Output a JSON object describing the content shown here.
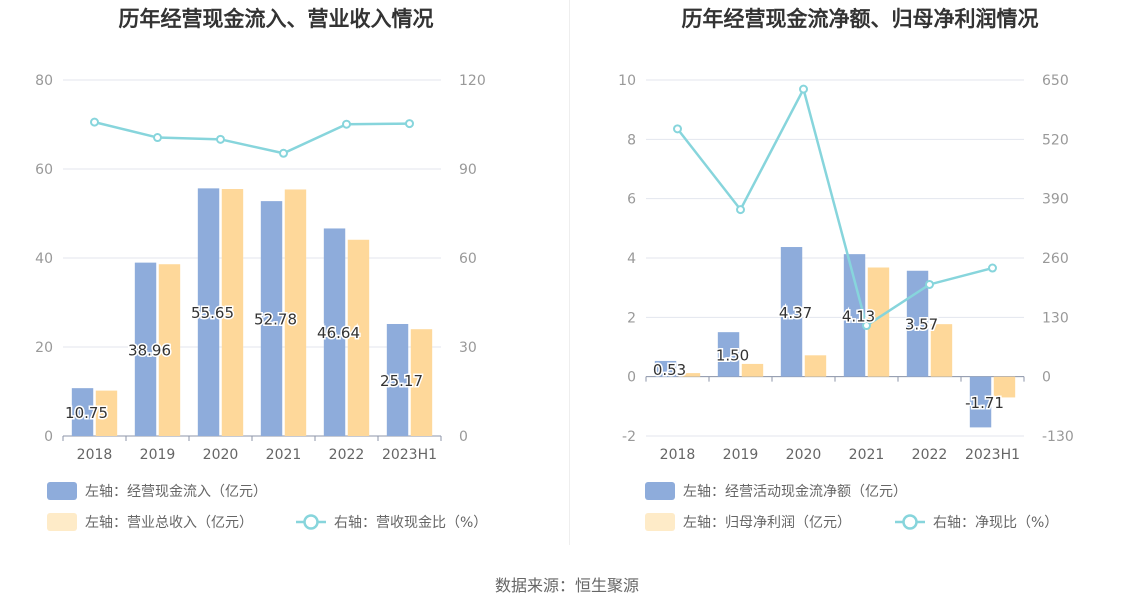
{
  "colors": {
    "bar1": "#8eacdb",
    "bar2": "#fed89a",
    "legend_bar2": "#feebc8",
    "line": "#87d5dc",
    "grid": "#e3e6ee"
  },
  "source": "数据来源：恒生聚源",
  "chart_data": [
    {
      "type": "bar+line",
      "title": "历年经营现金流入、营业收入情况",
      "categories": [
        "2018",
        "2019",
        "2020",
        "2021",
        "2022",
        "2023H1"
      ],
      "left_axis": {
        "min": 0,
        "max": 80,
        "ticks": [
          0,
          20,
          40,
          60,
          80
        ]
      },
      "right_axis": {
        "min": 0,
        "max": 120,
        "ticks": [
          0,
          30,
          60,
          90,
          120
        ]
      },
      "series": [
        {
          "name": "左轴：经营现金流入（亿元）",
          "kind": "bar",
          "axis": "left",
          "values": [
            10.75,
            38.96,
            55.65,
            52.78,
            46.64,
            25.17
          ],
          "labels": [
            "10.75",
            "38.96",
            "55.65",
            "52.78",
            "46.64",
            "25.17"
          ]
        },
        {
          "name": "左轴：营业总收入（亿元）",
          "kind": "bar",
          "axis": "left",
          "values": [
            10.2,
            38.6,
            55.5,
            55.4,
            44.1,
            24.0
          ]
        },
        {
          "name": "右轴：营收现金比（%）",
          "kind": "line",
          "axis": "right",
          "values": [
            105.8,
            100.6,
            100.0,
            95.3,
            105.1,
            105.3
          ]
        }
      ],
      "legend_placement": "bottom"
    },
    {
      "type": "bar+line",
      "title": "历年经营现金流净额、归母净利润情况",
      "categories": [
        "2018",
        "2019",
        "2020",
        "2021",
        "2022",
        "2023H1"
      ],
      "left_axis": {
        "min": -2,
        "max": 10,
        "ticks": [
          -2,
          0,
          2,
          4,
          6,
          8,
          10
        ]
      },
      "right_axis": {
        "min": -130,
        "max": 650,
        "ticks": [
          -130,
          0,
          130,
          260,
          390,
          520,
          650
        ]
      },
      "series": [
        {
          "name": "左轴：经营活动现金流净额（亿元）",
          "kind": "bar",
          "axis": "left",
          "values": [
            0.53,
            1.5,
            4.37,
            4.13,
            3.57,
            -1.71
          ],
          "labels": [
            "0.53",
            "1.50",
            "4.37",
            "4.13",
            "3.57",
            "-1.71"
          ]
        },
        {
          "name": "左轴：归母净利润（亿元）",
          "kind": "bar",
          "axis": "left",
          "values": [
            0.12,
            0.43,
            0.72,
            3.68,
            1.77,
            -0.7
          ]
        },
        {
          "name": "右轴：净现比（%）",
          "kind": "line",
          "axis": "right",
          "values": [
            543,
            366,
            630,
            112,
            202,
            238
          ]
        }
      ],
      "legend_placement": "bottom"
    }
  ]
}
